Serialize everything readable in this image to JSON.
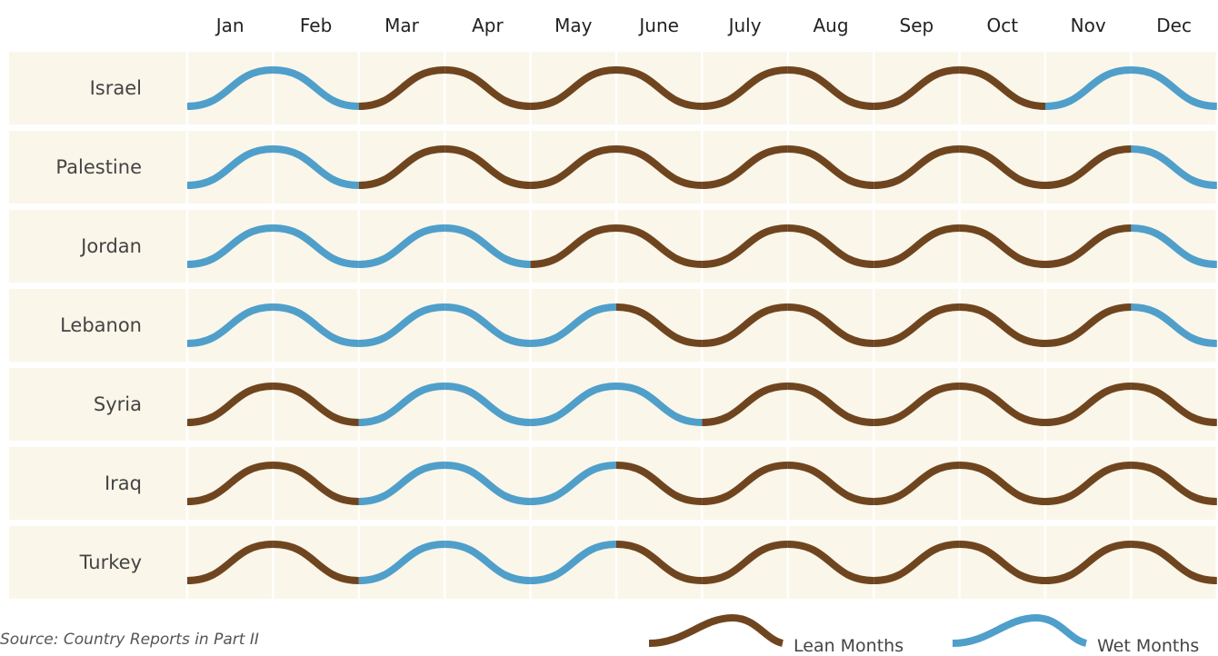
{
  "chart_data": {
    "type": "calendar-wave",
    "title": "",
    "months": [
      "Jan",
      "Feb",
      "Mar",
      "Apr",
      "May",
      "June",
      "July",
      "Aug",
      "Sep",
      "Oct",
      "Nov",
      "Dec"
    ],
    "rows": [
      {
        "name": "Israel",
        "wet": [
          1,
          1,
          0,
          0,
          0,
          0,
          0,
          0,
          0,
          0,
          1,
          1
        ]
      },
      {
        "name": "Palestine",
        "wet": [
          1,
          1,
          0,
          0,
          0,
          0,
          0,
          0,
          0,
          0,
          0,
          1
        ]
      },
      {
        "name": "Jordan",
        "wet": [
          1,
          1,
          1,
          1,
          0,
          0,
          0,
          0,
          0,
          0,
          0,
          1
        ]
      },
      {
        "name": "Lebanon",
        "wet": [
          1,
          1,
          1,
          1,
          1,
          0,
          0,
          0,
          0,
          0,
          0,
          1
        ]
      },
      {
        "name": "Syria",
        "wet": [
          0,
          0,
          1,
          1,
          1,
          1,
          0,
          0,
          0,
          0,
          0,
          0
        ]
      },
      {
        "name": "Iraq",
        "wet": [
          0,
          0,
          1,
          1,
          1,
          0,
          0,
          0,
          0,
          0,
          0,
          0
        ]
      },
      {
        "name": "Turkey",
        "wet": [
          0,
          0,
          1,
          1,
          1,
          0,
          0,
          0,
          0,
          0,
          0,
          0
        ]
      }
    ],
    "legend": [
      {
        "label": "Lean Months",
        "category": "lean",
        "color": "#6f4520"
      },
      {
        "label": "Wet Months",
        "category": "wet",
        "color": "#4f9fca"
      }
    ],
    "legend_position": "bottom-right"
  },
  "source": "Source: Country Reports in Part II",
  "colors": {
    "band": "#faf6e9",
    "lean": "#6f4520",
    "wet": "#4f9fca"
  }
}
